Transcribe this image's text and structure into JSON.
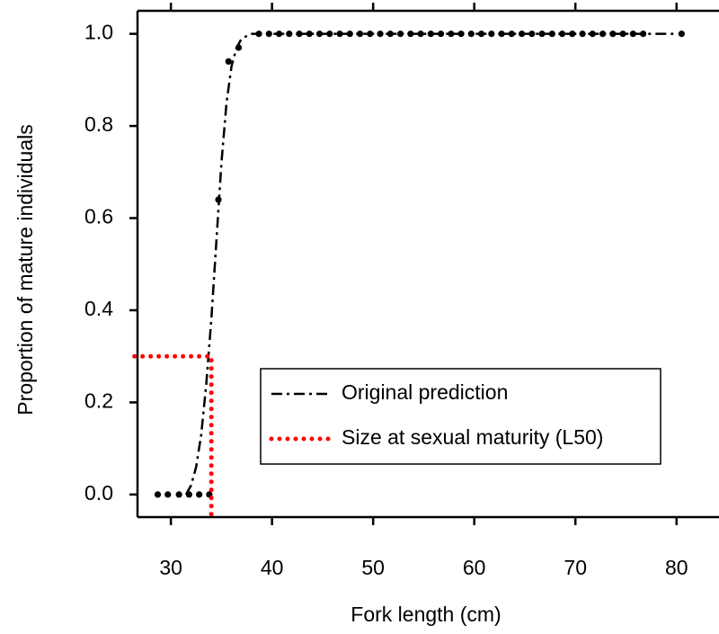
{
  "chart_data": {
    "type": "line",
    "xlabel": "Fork length (cm)",
    "ylabel": "Proportion of mature individuals",
    "xlim": [
      26.7,
      84.2
    ],
    "ylim": [
      -0.049,
      1.05
    ],
    "xticks": [
      30,
      40,
      50,
      60,
      70,
      80
    ],
    "yticks": [
      {
        "value": 0,
        "label": "0.0"
      },
      0.2,
      0.4,
      0.6,
      0.8,
      {
        "value": 1,
        "label": "1.0"
      }
    ],
    "legend": "lower right",
    "series": [
      {
        "type": "scatter",
        "color": "#000000",
        "x": [
          28.7,
          29.7,
          30.8,
          31.8,
          32.8,
          33.8,
          34.7,
          35.7,
          36.7,
          38.7,
          39.7,
          40.7,
          41.7,
          42.7,
          43.7,
          44.7,
          45.7,
          46.7,
          47.7,
          48.7,
          49.7,
          50.7,
          51.7,
          52.7,
          53.7,
          54.7,
          55.7,
          56.7,
          57.7,
          58.7,
          59.7,
          60.7,
          61.7,
          62.7,
          63.7,
          64.7,
          65.7,
          66.7,
          67.7,
          68.7,
          69.7,
          70.7,
          71.7,
          72.7,
          73.7,
          74.7,
          75.7,
          76.7,
          80.5
        ],
        "values": [
          0,
          0,
          0,
          0,
          0,
          0,
          0.64,
          0.94,
          0.97,
          1,
          1,
          1,
          1,
          1,
          1,
          1,
          1,
          1,
          1,
          1,
          1,
          1,
          1,
          1,
          1,
          1,
          1,
          1,
          1,
          1,
          1,
          1,
          1,
          1,
          1,
          1,
          1,
          1,
          1,
          1,
          1,
          1,
          1,
          1,
          1,
          1,
          1,
          1,
          1
        ]
      },
      {
        "type": "line",
        "name": "Original prediction",
        "color": "#000000",
        "line_style": "dash-dot",
        "x": [
          31.5,
          32,
          32.5,
          33,
          33.5,
          34,
          34.5,
          35,
          35.5,
          36,
          36.5,
          37,
          38,
          40,
          50,
          60,
          70,
          80
        ],
        "values": [
          0,
          0.02,
          0.06,
          0.13,
          0.24,
          0.38,
          0.55,
          0.72,
          0.85,
          0.93,
          0.97,
          0.99,
          1,
          1,
          1,
          1,
          1,
          1
        ]
      },
      {
        "type": "line",
        "name": "Size at sexual maturity (L50)",
        "color": "#ff0000",
        "line_style": "dotted",
        "x": [
          26.4,
          34,
          34
        ],
        "values": [
          0.3,
          0.3,
          -0.049
        ]
      }
    ]
  }
}
